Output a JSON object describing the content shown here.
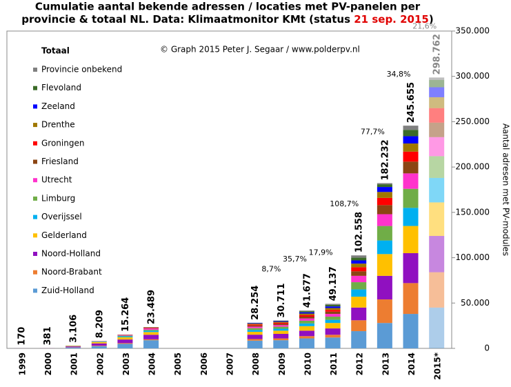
{
  "chart_data": {
    "type": "stacked_bar",
    "title_line1": "Cumulatie aantal bekende adressen / locaties met PV-panelen per",
    "title_line2": [
      "provincie & totaal NL. Data: Klimaatmonitor KMt (status ",
      "21 sep. 2015",
      ")"
    ],
    "credit": "© Graph 2015 Peter J. Segaar / www.polderpv.nl",
    "legend_title": "Totaal",
    "y_label": "Aantal adresen met PV-modules",
    "categories": [
      "1999",
      "2000",
      "2001",
      "2002",
      "2003",
      "2004",
      "2005",
      "2006",
      "2007",
      "2008",
      "2009",
      "2010",
      "2011",
      "2012",
      "2013",
      "2014",
      "2015*"
    ],
    "faded_index": 16,
    "ylim": [
      0,
      350000
    ],
    "yticks": [
      0,
      {
        "value": 50000,
        "label": "50.000"
      },
      {
        "value": 100000,
        "label": "100.000"
      },
      {
        "value": 150000,
        "label": "150.000"
      },
      {
        "value": 200000,
        "label": "200.000"
      },
      {
        "value": 250000,
        "label": "250.000"
      },
      {
        "value": 300000,
        "label": "300.000"
      },
      {
        "value": 350000,
        "label": "350.000"
      }
    ],
    "series": [
      {
        "name": "Zuid-Holland",
        "color": "#5b9bd5",
        "values": [
          50,
          100,
          1000,
          2500,
          5000,
          9000,
          null,
          null,
          null,
          8500,
          9000,
          11000,
          12000,
          19000,
          28000,
          38000,
          45000
        ]
      },
      {
        "name": "Noord-Brabant",
        "color": "#ed7d31",
        "values": [
          15,
          30,
          200,
          500,
          800,
          1000,
          null,
          null,
          null,
          1800,
          2000,
          2500,
          3000,
          12000,
          26000,
          34000,
          39000
        ]
      },
      {
        "name": "Noord-Holland",
        "color": "#9010c0",
        "values": [
          50,
          120,
          1000,
          2500,
          4000,
          5000,
          null,
          null,
          null,
          4800,
          5000,
          6000,
          7000,
          14000,
          26000,
          33000,
          40000
        ]
      },
      {
        "name": "Gelderland",
        "color": "#ffc000",
        "values": [
          25,
          60,
          500,
          1500,
          2500,
          3000,
          null,
          null,
          null,
          3200,
          3500,
          5000,
          6000,
          12000,
          24000,
          30000,
          37000
        ]
      },
      {
        "name": "Overijssel",
        "color": "#00b0f0",
        "values": [
          12,
          30,
          200,
          500,
          1000,
          1500,
          null,
          null,
          null,
          2000,
          2200,
          3000,
          3500,
          8000,
          15000,
          20000,
          27000
        ]
      },
      {
        "name": "Limburg",
        "color": "#70ad47",
        "values": [
          8,
          15,
          100,
          300,
          700,
          1000,
          null,
          null,
          null,
          2000,
          2200,
          3000,
          3500,
          8000,
          16000,
          21000,
          24000
        ]
      },
      {
        "name": "Utrecht",
        "color": "#ff33cc",
        "values": [
          4,
          10,
          60,
          200,
          700,
          1500,
          null,
          null,
          null,
          1700,
          1800,
          2500,
          3000,
          7000,
          13000,
          17000,
          21000
        ]
      },
      {
        "name": "Friesland",
        "color": "#8b4513",
        "values": [
          2,
          5,
          20,
          100,
          200,
          500,
          null,
          null,
          null,
          1300,
          1400,
          2000,
          2500,
          5000,
          10000,
          13000,
          16000
        ]
      },
      {
        "name": "Groningen",
        "color": "#ff0000",
        "values": [
          1,
          4,
          10,
          50,
          200,
          500,
          null,
          null,
          null,
          1100,
          1200,
          1800,
          2000,
          4500,
          8000,
          11000,
          16000
        ]
      },
      {
        "name": "Drenthe",
        "color": "#a07800",
        "values": [
          1,
          3,
          10,
          30,
          100,
          300,
          null,
          null,
          null,
          900,
          1000,
          1600,
          2000,
          4000,
          6500,
          9000,
          12000
        ]
      },
      {
        "name": "Zeeland",
        "color": "#0000ff",
        "values": [
          1,
          2,
          3,
          10,
          30,
          100,
          null,
          null,
          null,
          700,
          800,
          1400,
          1800,
          3500,
          5500,
          8000,
          11000
        ]
      },
      {
        "name": "Flevoland",
        "color": "#3a6b28",
        "values": [
          1,
          1,
          2,
          10,
          20,
          50,
          null,
          null,
          null,
          200,
          500,
          1200,
          1800,
          3000,
          3000,
          7000,
          8000
        ]
      },
      {
        "name": "Provincie onbekend",
        "color": "#808080",
        "values": [
          0,
          1,
          1,
          9,
          14,
          39,
          null,
          null,
          null,
          54,
          111,
          677,
          1037,
          2558,
          1232,
          4655,
          2762
        ]
      }
    ],
    "totals": {
      "values": [
        170,
        381,
        3106,
        8209,
        15264,
        23489,
        null,
        null,
        null,
        28254,
        30711,
        41677,
        49137,
        102558,
        182232,
        245655,
        298762
      ],
      "value_labels": [
        "170",
        "381",
        "3.106",
        "8.209",
        "15.264",
        "23.489",
        null,
        null,
        null,
        "28.254",
        "30.711",
        "41.677",
        "49.137",
        "102.558",
        "182.232",
        "245.655",
        "298.762"
      ]
    },
    "growth_labels": [
      null,
      null,
      null,
      null,
      null,
      null,
      null,
      null,
      null,
      null,
      "8,7%",
      "35,7%",
      "17,9%",
      "108,7%",
      "77,7%",
      "34,8%",
      "21,6%"
    ]
  }
}
